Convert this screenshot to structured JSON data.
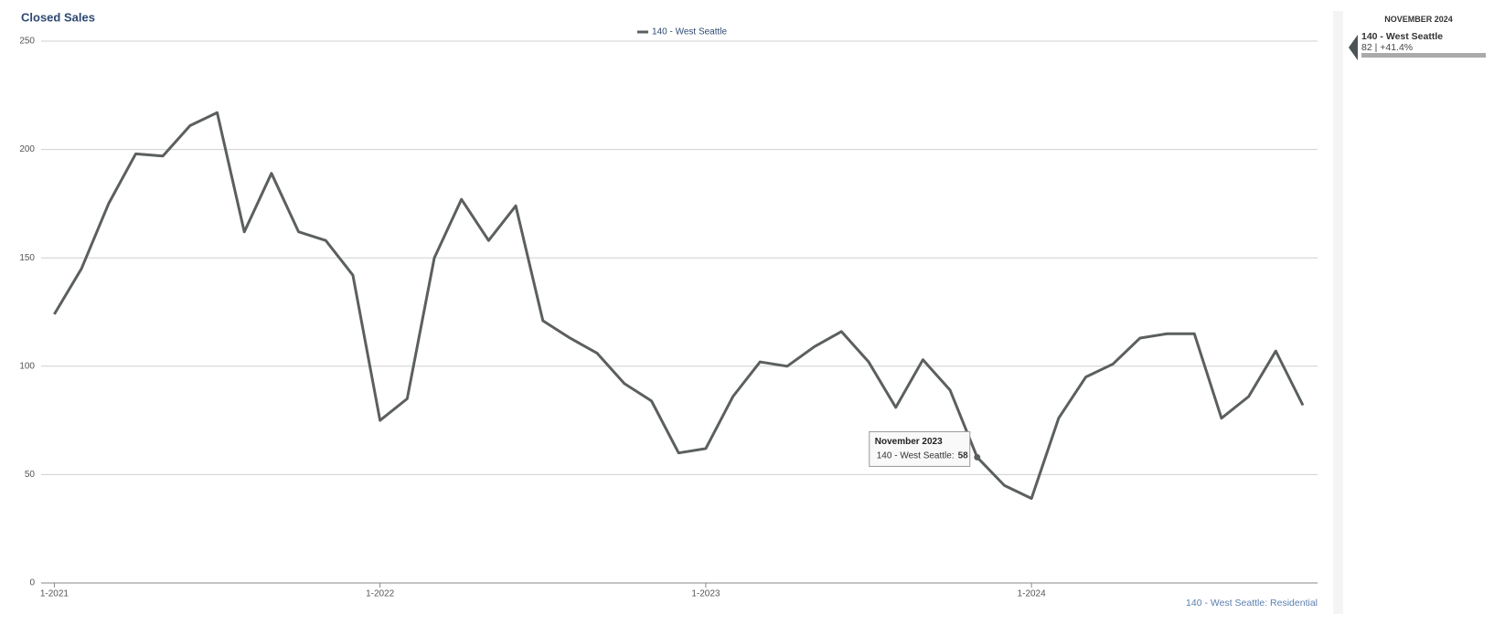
{
  "chart_data": {
    "type": "line",
    "title": "Closed Sales",
    "categories": [
      "1-2021",
      null,
      null,
      null,
      null,
      null,
      null,
      null,
      null,
      null,
      null,
      null,
      "1-2022",
      null,
      null,
      null,
      null,
      null,
      null,
      null,
      null,
      null,
      null,
      null,
      "1-2023",
      null,
      null,
      null,
      null,
      null,
      null,
      null,
      null,
      null,
      null,
      null,
      "1-2024",
      null,
      null,
      null,
      null,
      null,
      null,
      null,
      null,
      null,
      null
    ],
    "series": [
      {
        "name": "140 - West Seattle",
        "color": "#5b5f5f",
        "values": [
          124,
          145,
          175,
          198,
          197,
          211,
          217,
          162,
          189,
          162,
          158,
          142,
          75,
          85,
          150,
          177,
          158,
          174,
          121,
          113,
          106,
          92,
          84,
          60,
          62,
          86,
          102,
          100,
          109,
          116,
          102,
          81,
          103,
          89,
          58,
          45,
          39,
          76,
          95,
          101,
          113,
          115,
          115,
          76,
          86,
          107,
          82
        ]
      }
    ],
    "ylim": [
      0,
      250
    ],
    "yticks": [
      0,
      50,
      100,
      150,
      200,
      250
    ],
    "grid": true,
    "legend": "top",
    "tooltip": {
      "title": "November 2023",
      "label": "140 - West Seattle:",
      "index": 34
    },
    "footer": "140 - West Seattle: Residential"
  },
  "sidebar": {
    "period": "NOVEMBER 2024",
    "name": "140 - West Seattle",
    "summary": "82 | +41.4%"
  }
}
